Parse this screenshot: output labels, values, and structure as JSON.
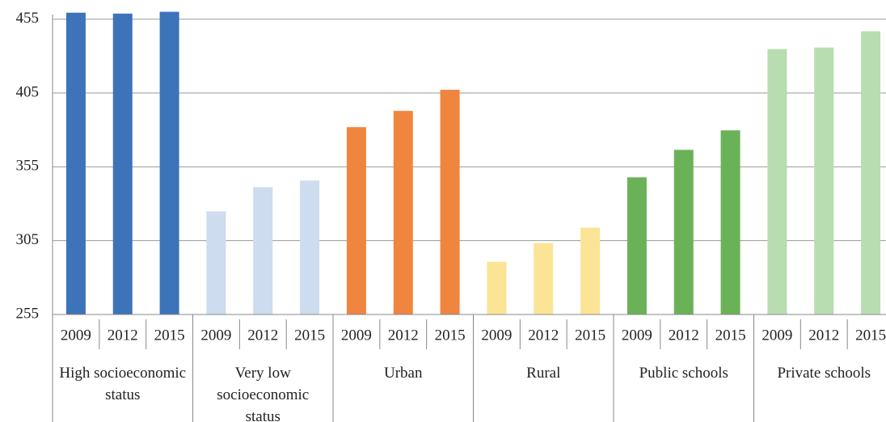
{
  "chart_data": {
    "type": "grouped_bar",
    "categories": [
      "2009",
      "2012",
      "2015"
    ],
    "series": [
      {
        "name": "High socioeconomic status",
        "color": "#3d73b9",
        "values": [
          459.4,
          458.8,
          460.0
        ]
      },
      {
        "name": "Very low socioeconomic status",
        "color": "#cddcee",
        "values": [
          324.8,
          341.3,
          345.7
        ]
      },
      {
        "name": "Urban",
        "color": "#f0853f",
        "values": [
          381.9,
          392.9,
          407.2
        ]
      },
      {
        "name": "Rural",
        "color": "#fce497",
        "values": [
          290.7,
          303.4,
          313.8
        ]
      },
      {
        "name": "Public schools",
        "color": "#6ab257",
        "values": [
          347.9,
          366.5,
          379.7
        ]
      },
      {
        "name": "Private schools",
        "color": "#b8ddb0",
        "values": [
          434.7,
          435.8,
          446.8
        ]
      }
    ],
    "ylim": [
      255,
      468
    ],
    "yticks": [
      255,
      305,
      355,
      405,
      455
    ],
    "grid": true
  }
}
